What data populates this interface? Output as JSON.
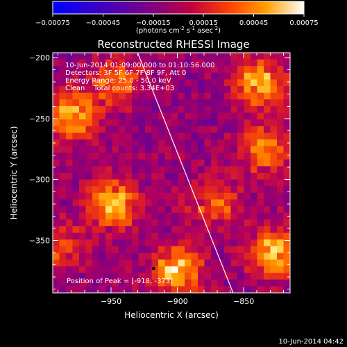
{
  "title": "Reconstructed RHESSI Image",
  "colorbar": {
    "ticks": [
      "-0.00075",
      "-0.00045",
      "-0.00015",
      "0.00015",
      "0.00045",
      "0.00075"
    ],
    "unit_main": "(photons cm",
    "unit_exp1": "-2",
    "unit_mid": " s",
    "unit_exp2": "-1",
    "unit_after": " asec",
    "unit_exp3": "-2",
    "unit_close": ")",
    "range": [
      -0.00075,
      0.00075
    ]
  },
  "info": {
    "line1": "10-Jun-2014 01:09:00.000 to 01:10:56.000",
    "line2": "Detectors: 3F 5F 6F 7F 8F 9F, Att 0",
    "line3": "Energy Range: 25.0 - 50.0 keV",
    "line4": "Clean    Total counts: 3.34E+03"
  },
  "peak_label": "Position of Peak = [-918, -373]",
  "footer_time": "10-Jun-2014 04:42",
  "chart_data": {
    "type": "heatmap",
    "title": "Reconstructed RHESSI Image",
    "xlabel": "Heliocentric X (arcsec)",
    "ylabel": "Heliocentric Y (arcsec)",
    "xlim": [
      -994,
      -815
    ],
    "ylim": [
      -393,
      -196
    ],
    "x_ticks": [
      -950,
      -900,
      -850
    ],
    "x_tick_labels": [
      "−950",
      "−900",
      "−850"
    ],
    "y_ticks": [
      -350,
      -300,
      -250,
      -200
    ],
    "y_tick_labels": [
      "−350",
      "−300",
      "−250",
      "−200"
    ],
    "colormap": [
      "#0000ff",
      "#4000c0",
      "#800080",
      "#b00060",
      "#e02020",
      "#ff6000",
      "#ffa000",
      "#ffe060",
      "#ffffff"
    ],
    "sources": [
      {
        "x": -980,
        "y": -248,
        "amp": 0.00075
      },
      {
        "x": -948,
        "y": -220,
        "amp": 0.00048
      },
      {
        "x": -838,
        "y": -222,
        "amp": 0.00072
      },
      {
        "x": -833,
        "y": -275,
        "amp": 0.0006
      },
      {
        "x": -948,
        "y": -320,
        "amp": 0.00075
      },
      {
        "x": -872,
        "y": -318,
        "amp": 0.00045
      },
      {
        "x": -900,
        "y": -375,
        "amp": 0.00075
      },
      {
        "x": -827,
        "y": -360,
        "amp": 0.00075
      },
      {
        "x": -990,
        "y": -355,
        "amp": 0.0004
      }
    ],
    "background_level": -0.00028,
    "limb_line": {
      "x": [
        -930,
        -858
      ],
      "y": [
        -196,
        -393
      ]
    },
    "peak_marker": {
      "x": -918,
      "y": -373
    }
  }
}
